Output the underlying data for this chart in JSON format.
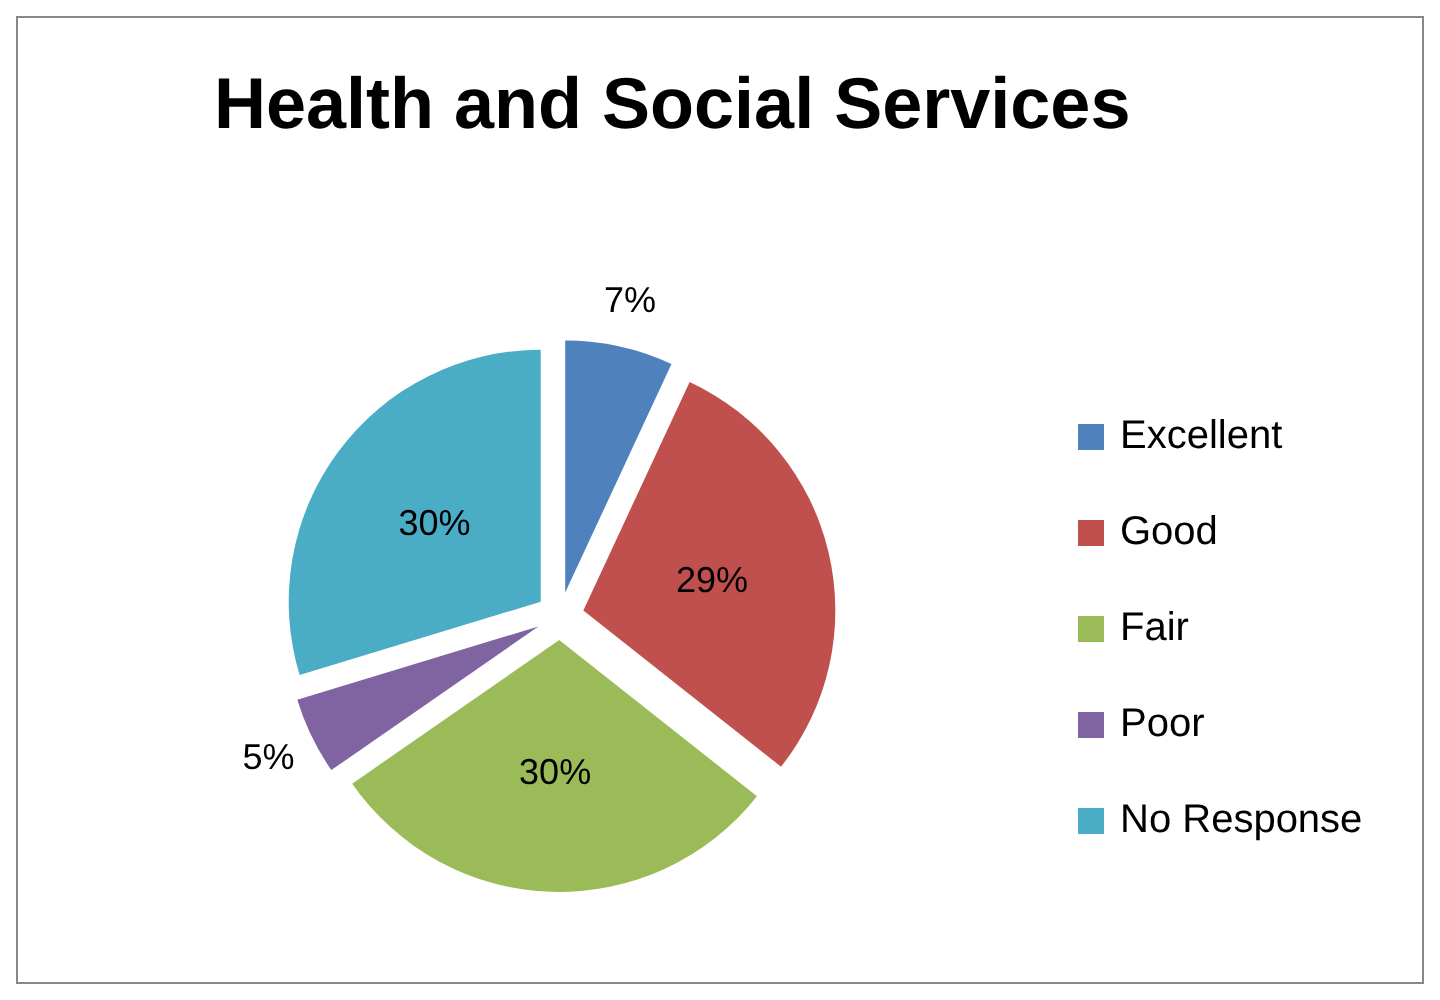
{
  "chart_data": {
    "type": "pie",
    "title": "Health and Social Services",
    "categories": [
      "Excellent",
      "Good",
      "Fair",
      "Poor",
      "No Response"
    ],
    "values": [
      7,
      29,
      30,
      5,
      30
    ],
    "colors": [
      "#4f81bd",
      "#c0504d",
      "#9bbb59",
      "#8064a2",
      "#4bacc6"
    ],
    "value_labels": [
      "7%",
      "29%",
      "30%",
      "5%",
      "30%"
    ],
    "legend": "right"
  }
}
